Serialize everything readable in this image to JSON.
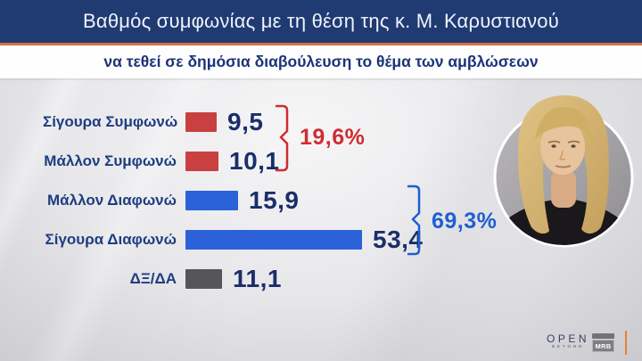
{
  "header": {
    "title": "Βαθμός συμφωνίας με τη θέση της κ. Μ. Καρυστιανού",
    "subtitle": "να τεθεί σε δημόσια διαβούλευση το θέμα των αμβλώσεων"
  },
  "chart_data": {
    "type": "bar",
    "orientation": "horizontal",
    "title": "Βαθμός συμφωνίας με τη θέση της κ. Μ. Καρυστιανού",
    "subtitle": "να τεθεί σε δημόσια διαβούλευση το θέμα των αμβλώσεων",
    "categories": [
      "Σίγουρα Συμφωνώ",
      "Μάλλον Συμφωνώ",
      "Μάλλον Διαφωνώ",
      "Σίγουρα Διαφωνώ",
      "ΔΞ/ΔΑ"
    ],
    "values": [
      9.5,
      10.1,
      15.9,
      53.4,
      11.1
    ],
    "value_labels": [
      "9,5",
      "10,1",
      "15,9",
      "53,4",
      "11,1"
    ],
    "bar_colors": [
      "#c8403f",
      "#c8403f",
      "#2b62d9",
      "#2b62d9",
      "#56565a"
    ],
    "unit": "percent",
    "axis": "none",
    "legend": "none",
    "groups": [
      {
        "label": "19,6%",
        "members": [
          "Σίγουρα Συμφωνώ",
          "Μάλλον Συμφωνώ"
        ],
        "color": "#cf2d33"
      },
      {
        "label": "69,3%",
        "members": [
          "Μάλλον Διαφωνώ",
          "Σίγουρα Διαφωνώ"
        ],
        "color": "#1f5ed2"
      }
    ]
  },
  "colors": {
    "header_bg": "#203a72",
    "accent_orange": "#dd7140",
    "subtitle_text": "#1b3478",
    "label_text": "#1e3d80",
    "value_text": "#1b2e6b"
  },
  "footer": {
    "open_logo": "OPEN",
    "open_tagline": "BEYOND",
    "mrb_logo": "MRB"
  }
}
